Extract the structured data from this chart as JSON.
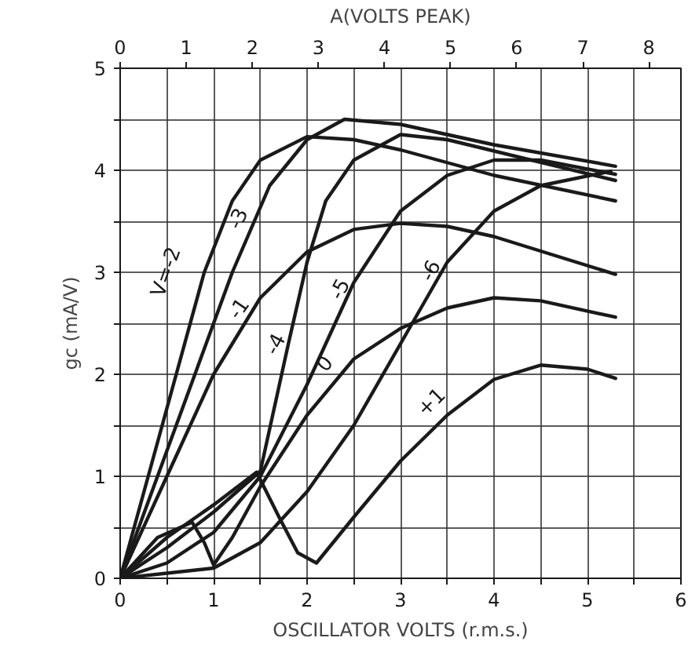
{
  "chart_data": {
    "type": "line",
    "xlabel": "OSCILLATOR VOLTS (r.m.s.)",
    "ylabel": "gc (mA/V)",
    "x2label": "A(VOLTS PEAK)",
    "xlim": [
      0,
      6
    ],
    "ylim": [
      0,
      5
    ],
    "x2lim": [
      0,
      8.485
    ],
    "xticks": [
      0,
      {
        "value": 0.5,
        "label": null
      },
      1,
      {
        "value": 1.5,
        "label": null
      },
      2,
      {
        "value": 2.5,
        "label": null
      },
      3,
      {
        "value": 3.5,
        "label": null
      },
      4,
      {
        "value": 4.5,
        "label": null
      },
      5,
      {
        "value": 5.5,
        "label": null
      },
      6
    ],
    "yticks": [
      0,
      {
        "value": 0.5,
        "label": null
      },
      1,
      {
        "value": 1.5,
        "label": null
      },
      2,
      {
        "value": 2.5,
        "label": null
      },
      3,
      {
        "value": 3.5,
        "label": null
      },
      4,
      {
        "value": 4.5,
        "label": null
      },
      5
    ],
    "x2ticks": [
      0,
      1,
      2,
      3,
      4,
      5,
      6,
      7,
      8
    ],
    "grid": true,
    "line_style": "solid",
    "series": [
      {
        "name": "V=-2",
        "color": "#1a1a1a",
        "x": [
          0,
          0.3,
          0.6,
          0.9,
          1.2,
          1.5,
          2.0,
          2.5,
          3.0,
          4.0,
          5.3
        ],
        "values": [
          0,
          1.0,
          2.0,
          3.0,
          3.7,
          4.1,
          4.33,
          4.3,
          4.2,
          3.95,
          3.7
        ]
      },
      {
        "name": "-3",
        "color": "#1a1a1a",
        "x": [
          0,
          0.4,
          0.8,
          1.2,
          1.6,
          2.0,
          2.4,
          3.0,
          4.0,
          5.3
        ],
        "values": [
          0,
          1.0,
          2.0,
          3.0,
          3.85,
          4.3,
          4.5,
          4.45,
          4.25,
          4.04
        ]
      },
      {
        "name": "-1",
        "color": "#1a1a1a",
        "x": [
          0,
          0.5,
          1.0,
          1.5,
          2.0,
          2.5,
          3.0,
          3.5,
          4.0,
          5.3
        ],
        "values": [
          0,
          1.0,
          2.0,
          2.75,
          3.2,
          3.42,
          3.48,
          3.45,
          3.35,
          2.98
        ]
      },
      {
        "name": "-4",
        "color": "#1a1a1a",
        "x": [
          0,
          0.5,
          1.0,
          1.5,
          1.8,
          2.0,
          2.2,
          2.5,
          3.0,
          3.5,
          5.3
        ],
        "values": [
          0,
          0.3,
          0.65,
          1.05,
          2.3,
          3.1,
          3.7,
          4.1,
          4.35,
          4.3,
          3.9
        ]
      },
      {
        "name": "-5",
        "color": "#1a1a1a",
        "x": [
          0,
          0.5,
          1.0,
          1.5,
          2.0,
          2.5,
          3.0,
          3.5,
          4.0,
          4.5,
          5.3
        ],
        "values": [
          0,
          0.15,
          0.45,
          1.0,
          1.9,
          2.9,
          3.6,
          3.95,
          4.1,
          4.1,
          3.96
        ]
      },
      {
        "name": "-6",
        "color": "#1a1a1a",
        "x": [
          0,
          1.0,
          1.5,
          2.0,
          2.5,
          3.0,
          3.5,
          4.0,
          4.5,
          5.25
        ],
        "values": [
          0,
          0.1,
          0.35,
          0.85,
          1.5,
          2.3,
          3.1,
          3.6,
          3.85,
          3.99
        ]
      },
      {
        "name": "0",
        "color": "#1a1a1a",
        "x": [
          0,
          0.4,
          0.77,
          0.9,
          1.0,
          1.2,
          1.5,
          2.0,
          2.5,
          3.0,
          3.5,
          4.0,
          4.5,
          5.3
        ],
        "values": [
          0,
          0.4,
          0.55,
          0.35,
          0.13,
          0.4,
          0.9,
          1.6,
          2.15,
          2.45,
          2.65,
          2.75,
          2.72,
          2.56
        ]
      },
      {
        "name": "+1",
        "color": "#1a1a1a",
        "x": [
          0,
          0.5,
          1.0,
          1.46,
          1.7,
          1.9,
          2.1,
          2.5,
          3.0,
          3.5,
          4.0,
          4.5,
          5.0,
          5.3
        ],
        "values": [
          0,
          0.4,
          0.72,
          1.04,
          0.6,
          0.25,
          0.15,
          0.6,
          1.15,
          1.6,
          1.95,
          2.09,
          2.05,
          1.96
        ]
      }
    ]
  }
}
